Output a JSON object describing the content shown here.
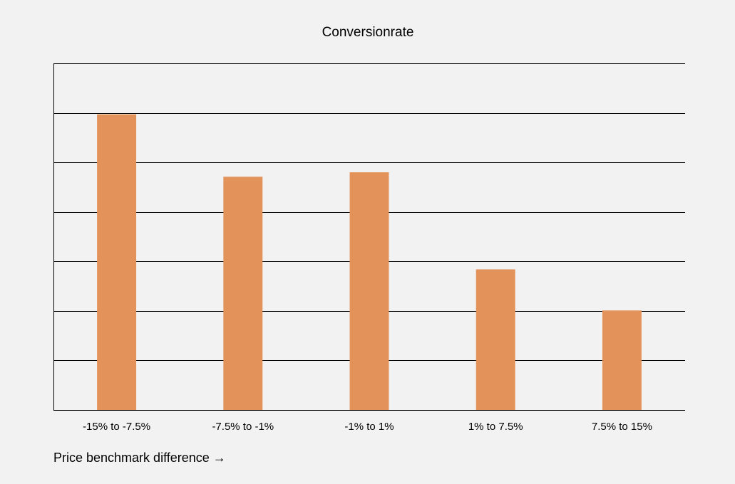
{
  "chart_data": {
    "type": "bar",
    "title": "Conversionrate",
    "xlabel": "Price benchmark difference →",
    "ylabel": "",
    "categories": [
      "-15% to -7.5%",
      "-7.5% to -1%",
      "-1% to 1%",
      "1% to 7.5%",
      "7.5% to 15%"
    ],
    "values": [
      5.97,
      4.71,
      4.8,
      2.84,
      2.01
    ],
    "ylim": [
      0,
      7
    ],
    "ytick_step": 1,
    "y_tick_labels_shown": false,
    "grid": true,
    "legend": "none",
    "bar_color": "#e3935a"
  }
}
